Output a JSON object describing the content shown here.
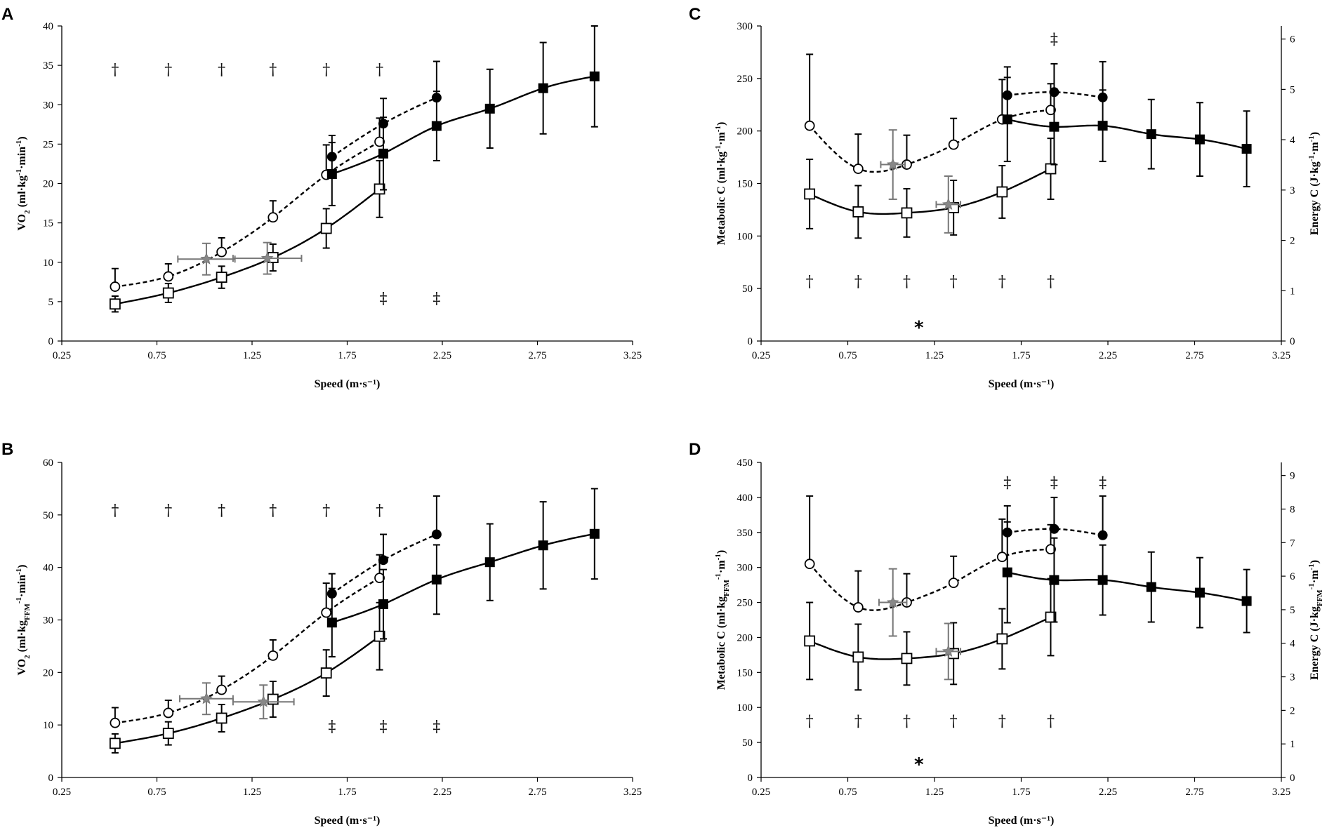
{
  "chart_data": [
    {
      "panel": "A",
      "type": "line",
      "xlabel": "Speed (m·s⁻¹)",
      "ylabel": "VO₂ (ml·kg⁻¹·min⁻¹)",
      "ylabel_parts": [
        "VO",
        "2",
        " (ml·kg",
        "-1",
        "·min",
        "-1",
        ")"
      ],
      "xlim": [
        0.25,
        3.25
      ],
      "xticks": [
        "0.25",
        "0.75",
        "1.25",
        "1.75",
        "2.25",
        "2.75",
        "3.25"
      ],
      "ylim": [
        0,
        40
      ],
      "yticks": [
        0,
        5,
        10,
        15,
        20,
        25,
        30,
        35,
        40
      ],
      "series": [
        {
          "name": "open circles",
          "marker": "open-circle",
          "curve": "dashed",
          "x": [
            0.53,
            0.81,
            1.09,
            1.36,
            1.64,
            1.92
          ],
          "y": [
            6.9,
            8.2,
            11.3,
            15.7,
            21.1,
            25.3
          ],
          "err": [
            2.3,
            1.6,
            1.8,
            2.1,
            3.8,
            3.0
          ]
        },
        {
          "name": "filled circles",
          "marker": "filled-circle",
          "curve": "dashed",
          "x": [
            1.67,
            1.94,
            2.22
          ],
          "y": [
            23.4,
            27.6,
            30.9
          ],
          "err": [
            2.7,
            3.2,
            4.6
          ]
        },
        {
          "name": "open squares",
          "marker": "open-square",
          "curve": "solid",
          "x": [
            0.53,
            0.81,
            1.09,
            1.36,
            1.64,
            1.92
          ],
          "y": [
            4.7,
            6.1,
            8.1,
            10.6,
            14.3,
            19.3
          ],
          "err": [
            1.0,
            1.2,
            1.4,
            1.7,
            2.5,
            3.6
          ]
        },
        {
          "name": "filled squares",
          "marker": "filled-square",
          "curve": "solid",
          "x": [
            1.67,
            1.94,
            2.22,
            2.5,
            2.78,
            3.05
          ],
          "y": [
            21.2,
            23.8,
            27.3,
            29.5,
            32.1,
            33.6
          ],
          "err": [
            4.0,
            4.6,
            4.4,
            5.0,
            5.8,
            6.4
          ]
        },
        {
          "name": "grey asterisks",
          "marker": "grey-star",
          "x": [
            1.01,
            1.33
          ],
          "y": [
            10.4,
            10.5
          ],
          "yerr": [
            2.0,
            2.0
          ],
          "xerr": [
            0.15,
            0.18
          ]
        }
      ],
      "annotations": [
        {
          "text": "†",
          "x": [
            0.53,
            0.81,
            1.09,
            1.36,
            1.64,
            1.92
          ],
          "y": 34.5
        },
        {
          "text": "‡",
          "x": [
            1.94,
            2.22
          ],
          "y": 5.5
        }
      ]
    },
    {
      "panel": "B",
      "type": "line",
      "xlabel": "Speed (m·s⁻¹)",
      "ylabel": "VO₂ (ml·kgFFM⁻¹·min⁻¹)",
      "ylabel_parts": [
        "VO",
        "2",
        " (ml·kg",
        "FFM",
        "-1",
        "·min",
        "-1",
        ")"
      ],
      "xlim": [
        0.25,
        3.25
      ],
      "xticks": [
        "0.25",
        "0.75",
        "1.25",
        "1.75",
        "2.25",
        "2.75",
        "3.25"
      ],
      "ylim": [
        0,
        60
      ],
      "yticks": [
        0,
        10,
        20,
        30,
        40,
        50,
        60
      ],
      "series": [
        {
          "name": "open circles",
          "marker": "open-circle",
          "curve": "dashed",
          "x": [
            0.53,
            0.81,
            1.09,
            1.36,
            1.64,
            1.92
          ],
          "y": [
            10.4,
            12.3,
            16.7,
            23.2,
            31.4,
            38.0
          ],
          "err": [
            2.9,
            2.4,
            2.6,
            3.0,
            5.6,
            4.4
          ]
        },
        {
          "name": "filled circles",
          "marker": "filled-circle",
          "curve": "dashed",
          "x": [
            1.67,
            1.94,
            2.22
          ],
          "y": [
            35.0,
            41.4,
            46.3
          ],
          "err": [
            3.8,
            4.9,
            7.3
          ]
        },
        {
          "name": "open squares",
          "marker": "open-square",
          "curve": "solid",
          "x": [
            0.53,
            0.81,
            1.09,
            1.36,
            1.64,
            1.92
          ],
          "y": [
            6.5,
            8.4,
            11.3,
            14.9,
            19.9,
            26.9
          ],
          "err": [
            1.8,
            2.2,
            2.6,
            3.4,
            4.4,
            6.4
          ]
        },
        {
          "name": "filled squares",
          "marker": "filled-square",
          "curve": "solid",
          "x": [
            1.67,
            1.94,
            2.22,
            2.5,
            2.78,
            3.05
          ],
          "y": [
            29.5,
            33.0,
            37.7,
            41.0,
            44.2,
            46.4
          ],
          "err": [
            6.5,
            6.6,
            6.6,
            7.3,
            8.3,
            8.6
          ]
        },
        {
          "name": "grey asterisks",
          "marker": "grey-star",
          "x": [
            1.01,
            1.31
          ],
          "y": [
            15.0,
            14.4
          ],
          "yerr": [
            3.0,
            3.2
          ],
          "xerr": [
            0.14,
            0.16
          ]
        }
      ],
      "annotations": [
        {
          "text": "†",
          "x": [
            0.53,
            0.81,
            1.09,
            1.36,
            1.64,
            1.92
          ],
          "y": 51.0
        },
        {
          "text": "‡",
          "x": [
            1.67,
            1.94,
            2.22
          ],
          "y": 9.8
        }
      ]
    },
    {
      "panel": "C",
      "type": "line",
      "xlabel": "Speed (m·s⁻¹)",
      "ylabel": "Metabolic C (ml·kg⁻¹·m⁻¹)",
      "ylabel_parts": [
        "Metabolic C (ml·kg",
        "-1",
        "·m",
        "-1",
        ")"
      ],
      "ylabel2": "Energy C (J·kg⁻¹·m⁻¹)",
      "ylabel2_parts": [
        "Energy C (J·kg",
        "-1",
        "·m",
        "-1",
        ")"
      ],
      "xlim": [
        0.25,
        3.25
      ],
      "xticks": [
        "0.25",
        "0.75",
        "1.25",
        "1.75",
        "2.25",
        "2.75",
        "3.25"
      ],
      "ylim": [
        0,
        300
      ],
      "yticks": [
        0,
        50,
        100,
        150,
        200,
        250,
        300
      ],
      "y2lim": [
        0,
        6.26
      ],
      "y2ticks": [
        0,
        1,
        2,
        3,
        4,
        5,
        6
      ],
      "series": [
        {
          "name": "open circles",
          "marker": "open-circle",
          "curve": "dashed",
          "x": [
            0.53,
            0.81,
            1.09,
            1.36,
            1.64,
            1.92
          ],
          "y": [
            205,
            164,
            168,
            187,
            211,
            220
          ],
          "err": [
            68,
            33,
            28,
            25,
            38,
            25
          ]
        },
        {
          "name": "filled circles",
          "marker": "filled-circle",
          "curve": "dashed",
          "x": [
            1.67,
            1.94,
            2.22
          ],
          "y": [
            234,
            237,
            232
          ],
          "err": [
            27,
            27,
            34
          ]
        },
        {
          "name": "open squares",
          "marker": "open-square",
          "curve": "solid",
          "x": [
            0.53,
            0.81,
            1.09,
            1.36,
            1.64,
            1.92
          ],
          "y": [
            140,
            123,
            122,
            127,
            142,
            164
          ],
          "err": [
            33,
            25,
            23,
            26,
            25,
            29
          ]
        },
        {
          "name": "filled squares",
          "marker": "filled-square",
          "curve": "solid",
          "x": [
            1.67,
            1.94,
            2.22,
            2.5,
            2.78,
            3.05
          ],
          "y": [
            211,
            204,
            205,
            197,
            192,
            183
          ],
          "err": [
            40,
            36,
            34,
            33,
            35,
            36
          ]
        },
        {
          "name": "grey asterisks",
          "marker": "grey-star",
          "x": [
            1.01,
            1.33
          ],
          "y": [
            168,
            130
          ],
          "yerr": [
            33,
            27
          ],
          "xerr": [
            0.07,
            0.07
          ]
        }
      ],
      "annotations": [
        {
          "text": "†",
          "x": [
            0.53,
            0.81,
            1.09,
            1.36,
            1.64,
            1.92
          ],
          "y": 57
        },
        {
          "text": "‡",
          "x": [
            1.94
          ],
          "y": 288
        },
        {
          "text": "*",
          "x": [
            1.16
          ],
          "y": 15
        }
      ]
    },
    {
      "panel": "D",
      "type": "line",
      "xlabel": "Speed (m·s⁻¹)",
      "ylabel": "Metabolic C (ml·kgFFM⁻¹·m⁻¹)",
      "ylabel_parts": [
        "Metabolic C (ml·kg",
        "FFM",
        "-1",
        "·m",
        "-1",
        ")"
      ],
      "ylabel2": "Energy C (J·kgFFM⁻¹·m⁻¹)",
      "ylabel2_parts": [
        "Energy C (J·kg",
        "FFM",
        "-1",
        "·m",
        "-1",
        ")"
      ],
      "xlim": [
        0.25,
        3.25
      ],
      "xticks": [
        "0.25",
        "0.75",
        "1.25",
        "1.75",
        "2.25",
        "2.75",
        "3.25"
      ],
      "ylim": [
        0,
        450
      ],
      "yticks": [
        0,
        50,
        100,
        150,
        200,
        250,
        300,
        350,
        400,
        450
      ],
      "y2lim": [
        0,
        9.39
      ],
      "y2ticks": [
        0,
        1,
        2,
        3,
        4,
        5,
        6,
        7,
        8,
        9
      ],
      "series": [
        {
          "name": "open circles",
          "marker": "open-circle",
          "curve": "dashed",
          "x": [
            0.53,
            0.81,
            1.09,
            1.36,
            1.64,
            1.92
          ],
          "y": [
            305,
            243,
            250,
            278,
            315,
            326
          ],
          "err": [
            97,
            52,
            41,
            38,
            54,
            35
          ]
        },
        {
          "name": "filled circles",
          "marker": "filled-circle",
          "curve": "dashed",
          "x": [
            1.67,
            1.94,
            2.22
          ],
          "y": [
            350,
            355,
            346
          ],
          "err": [
            38,
            45,
            56
          ]
        },
        {
          "name": "open squares",
          "marker": "open-square",
          "curve": "solid",
          "x": [
            0.53,
            0.81,
            1.09,
            1.36,
            1.64,
            1.92
          ],
          "y": [
            195,
            172,
            170,
            177,
            198,
            229
          ],
          "err": [
            55,
            47,
            38,
            44,
            43,
            55
          ]
        },
        {
          "name": "filled squares",
          "marker": "filled-square",
          "curve": "solid",
          "x": [
            1.67,
            1.94,
            2.22,
            2.5,
            2.78,
            3.05
          ],
          "y": [
            293,
            282,
            282,
            272,
            264,
            252
          ],
          "err": [
            72,
            60,
            50,
            50,
            50,
            45
          ]
        },
        {
          "name": "grey asterisks",
          "marker": "grey-star",
          "x": [
            1.01,
            1.33
          ],
          "y": [
            250,
            180
          ],
          "yerr": [
            48,
            40
          ],
          "xerr": [
            0.08,
            0.07
          ]
        }
      ],
      "annotations": [
        {
          "text": "†",
          "x": [
            0.53,
            0.81,
            1.09,
            1.36,
            1.64,
            1.92
          ],
          "y": 81
        },
        {
          "text": "‡",
          "x": [
            1.67,
            1.94,
            2.22
          ],
          "y": 422
        },
        {
          "text": "*",
          "x": [
            1.16
          ],
          "y": 22
        }
      ]
    }
  ]
}
